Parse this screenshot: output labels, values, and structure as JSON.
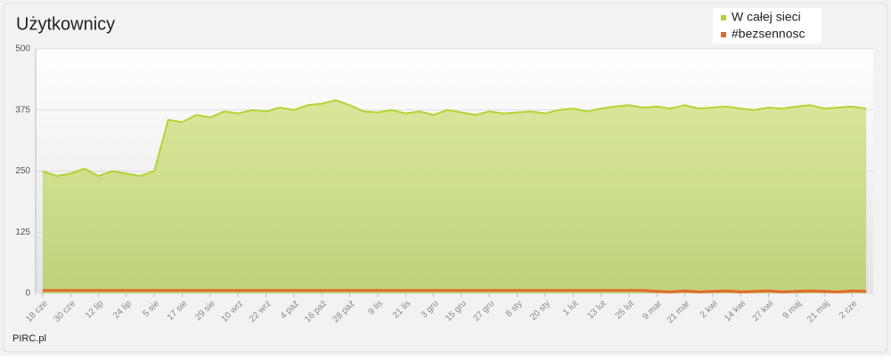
{
  "chart_data": {
    "type": "area",
    "title": "Użytkownicy",
    "footer": "PIRC.pl",
    "categories": [
      "18 cze",
      null,
      "30 cze",
      null,
      "12 lip",
      null,
      "24 lip",
      null,
      "5 sie",
      null,
      "17 sie",
      null,
      "29 sie",
      null,
      "10 wrz",
      null,
      "22 wrz",
      null,
      "4 paź",
      null,
      "16 paź",
      null,
      "28 paź",
      null,
      "9 lis",
      null,
      "21 lis",
      null,
      "3 gru",
      null,
      "15 gru",
      null,
      "27 gru",
      null,
      "8 sty",
      null,
      "20 sty",
      null,
      "1 lut",
      null,
      "13 lut",
      null,
      "25 lut",
      null,
      "9 mar",
      null,
      "21 mar",
      null,
      "2 kwi",
      null,
      "14 kwi",
      null,
      "27 kwi",
      null,
      "9 maj",
      null,
      "21 maj",
      null,
      "2 cze",
      null
    ],
    "series": [
      {
        "name": "W całej sieci",
        "color": "#b5d334",
        "values": [
          250,
          240,
          245,
          255,
          240,
          250,
          245,
          240,
          250,
          355,
          350,
          365,
          360,
          372,
          368,
          375,
          372,
          380,
          375,
          385,
          388,
          395,
          385,
          372,
          370,
          375,
          368,
          372,
          365,
          375,
          370,
          365,
          372,
          368,
          370,
          372,
          368,
          375,
          378,
          372,
          378,
          382,
          385,
          380,
          382,
          378,
          385,
          378,
          380,
          382,
          378,
          375,
          380,
          378,
          382,
          385,
          378,
          380,
          382,
          378
        ]
      },
      {
        "name": "#bezsennosc",
        "color": "#e06a2a",
        "values": [
          6,
          6,
          6,
          6,
          6,
          6,
          6,
          6,
          6,
          6,
          6,
          6,
          6,
          6,
          6,
          6,
          6,
          6,
          6,
          6,
          6,
          6,
          6,
          6,
          6,
          6,
          6,
          6,
          6,
          6,
          6,
          6,
          6,
          6,
          6,
          6,
          6,
          6,
          6,
          6,
          6,
          6,
          6,
          6,
          4,
          3,
          5,
          3,
          4,
          5,
          3,
          4,
          5,
          3,
          4,
          5,
          4,
          3,
          5,
          4
        ]
      }
    ],
    "ylim": [
      0,
      500
    ],
    "yticks": [
      0,
      125,
      250,
      375,
      500
    ],
    "grid": true,
    "legend": "top-right"
  }
}
